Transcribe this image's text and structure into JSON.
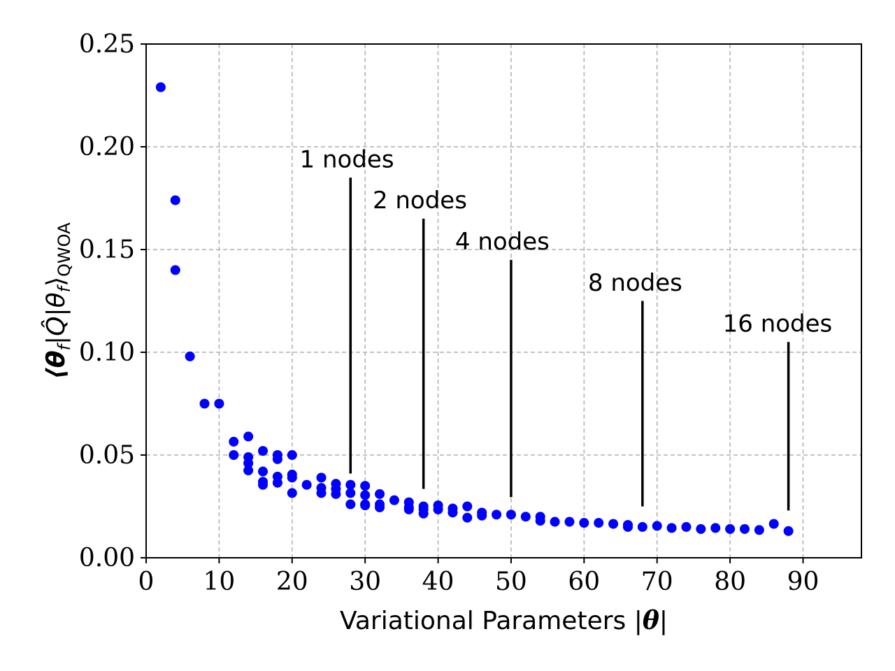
{
  "chart_data": {
    "type": "scatter",
    "title": "",
    "xlabel_text": "Variational Parameters |",
    "xlabel_symbol": "θ",
    "xlabel_close": "|",
    "ylabel_main": "⟨θ",
    "ylabel_sub_f": "f",
    "ylabel_mid": "|Q̂|θ",
    "ylabel_close": "⟩",
    "ylabel_sub_q": "QWOA",
    "xlim": [
      0,
      98
    ],
    "ylim": [
      0,
      0.25
    ],
    "x_ticks": [
      0,
      10,
      20,
      30,
      40,
      50,
      60,
      70,
      80,
      90
    ],
    "x_tick_labels": [
      "0",
      "10",
      "20",
      "30",
      "40",
      "50",
      "60",
      "70",
      "80",
      "90"
    ],
    "y_ticks": [
      0,
      0.05,
      0.1,
      0.15,
      0.2,
      0.25
    ],
    "y_tick_labels": [
      "0.00",
      "0.05",
      "0.10",
      "0.15",
      "0.20",
      "0.25"
    ],
    "grid": true,
    "marker_color": "#0000ff",
    "points": [
      [
        2,
        0.229
      ],
      [
        4,
        0.174
      ],
      [
        4,
        0.14
      ],
      [
        6,
        0.098
      ],
      [
        8,
        0.075
      ],
      [
        10,
        0.075
      ],
      [
        12,
        0.0565
      ],
      [
        12,
        0.05
      ],
      [
        14,
        0.059
      ],
      [
        14,
        0.049
      ],
      [
        14,
        0.046
      ],
      [
        14,
        0.0425
      ],
      [
        16,
        0.052
      ],
      [
        16,
        0.042
      ],
      [
        16,
        0.037
      ],
      [
        16,
        0.0355
      ],
      [
        18,
        0.05
      ],
      [
        18,
        0.048
      ],
      [
        18,
        0.0395
      ],
      [
        18,
        0.0365
      ],
      [
        20,
        0.05
      ],
      [
        20,
        0.0405
      ],
      [
        20,
        0.039
      ],
      [
        20,
        0.0315
      ],
      [
        22,
        0.0355
      ],
      [
        24,
        0.039
      ],
      [
        24,
        0.034
      ],
      [
        24,
        0.0315
      ],
      [
        26,
        0.036
      ],
      [
        26,
        0.0335
      ],
      [
        26,
        0.031
      ],
      [
        28,
        0.0355
      ],
      [
        28,
        0.0315
      ],
      [
        28,
        0.026
      ],
      [
        30,
        0.035
      ],
      [
        30,
        0.0305
      ],
      [
        30,
        0.026
      ],
      [
        30,
        0.0255
      ],
      [
        32,
        0.031
      ],
      [
        32,
        0.026
      ],
      [
        32,
        0.0245
      ],
      [
        34,
        0.028
      ],
      [
        36,
        0.027
      ],
      [
        36,
        0.0245
      ],
      [
        36,
        0.0235
      ],
      [
        38,
        0.025
      ],
      [
        38,
        0.0235
      ],
      [
        38,
        0.0215
      ],
      [
        40,
        0.0255
      ],
      [
        40,
        0.0235
      ],
      [
        42,
        0.024
      ],
      [
        42,
        0.022
      ],
      [
        44,
        0.025
      ],
      [
        44,
        0.0195
      ],
      [
        46,
        0.022
      ],
      [
        46,
        0.0205
      ],
      [
        48,
        0.021
      ],
      [
        50,
        0.021
      ],
      [
        52,
        0.02
      ],
      [
        54,
        0.02
      ],
      [
        54,
        0.018
      ],
      [
        56,
        0.0175
      ],
      [
        58,
        0.0175
      ],
      [
        60,
        0.017
      ],
      [
        62,
        0.017
      ],
      [
        64,
        0.0165
      ],
      [
        66,
        0.016
      ],
      [
        66,
        0.015
      ],
      [
        68,
        0.015
      ],
      [
        70,
        0.0155
      ],
      [
        72,
        0.0145
      ],
      [
        74,
        0.015
      ],
      [
        76,
        0.014
      ],
      [
        78,
        0.0145
      ],
      [
        80,
        0.014
      ],
      [
        82,
        0.014
      ],
      [
        84,
        0.0135
      ],
      [
        86,
        0.0165
      ],
      [
        88,
        0.013
      ]
    ],
    "annotations": [
      {
        "text": "1 nodes",
        "x": 28,
        "y_top": 0.185,
        "y_bottom": 0.041,
        "text_x": 27.5,
        "text_y": 0.19
      },
      {
        "text": "2 nodes",
        "x": 38,
        "y_top": 0.165,
        "y_bottom": 0.0335,
        "text_x": 37.5,
        "text_y": 0.17
      },
      {
        "text": "4 nodes",
        "x": 50,
        "y_top": 0.145,
        "y_bottom": 0.0295,
        "text_x": 48.8,
        "text_y": 0.15
      },
      {
        "text": "8 nodes",
        "x": 68,
        "y_top": 0.125,
        "y_bottom": 0.025,
        "text_x": 67,
        "text_y": 0.13
      },
      {
        "text": "16 nodes",
        "x": 88,
        "y_top": 0.105,
        "y_bottom": 0.023,
        "text_x": 86.5,
        "text_y": 0.11
      }
    ]
  }
}
